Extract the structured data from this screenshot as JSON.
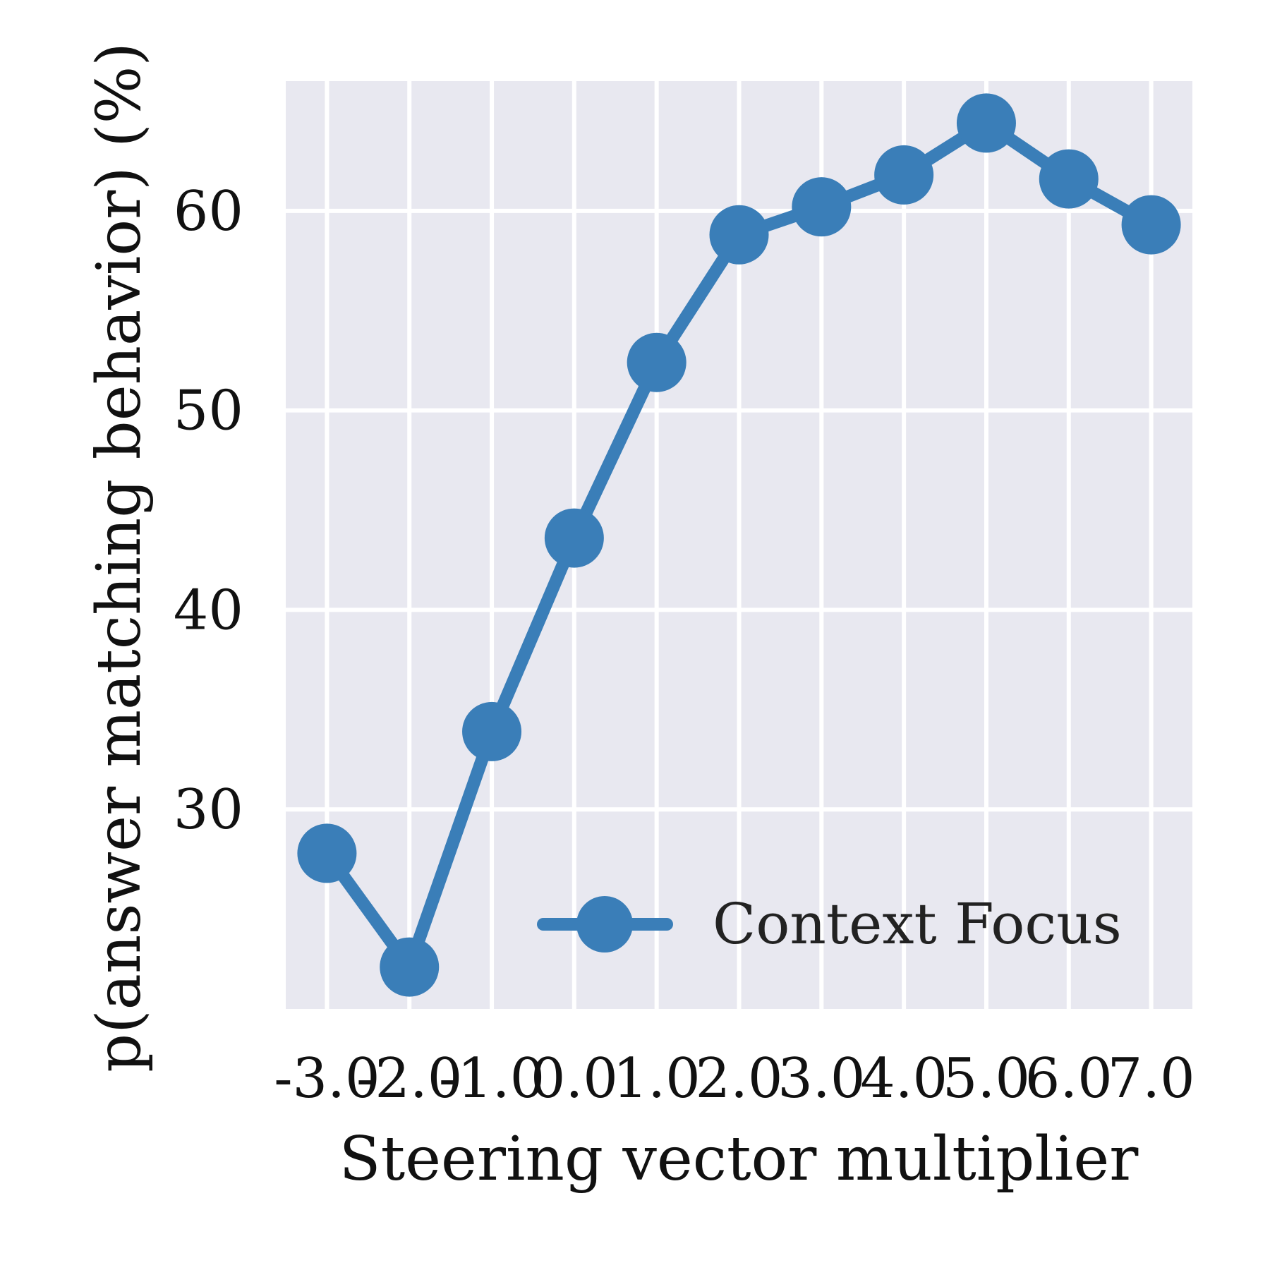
{
  "chart_data": {
    "type": "line",
    "title": "",
    "xlabel": "Steering vector multiplier",
    "ylabel": "p(answer matching behavior) (%)",
    "x": [
      -3.0,
      -2.0,
      -1.0,
      0.0,
      1.0,
      2.0,
      3.0,
      4.0,
      5.0,
      6.0,
      7.0
    ],
    "x_tick_labels": [
      "-3.0",
      "-2.0",
      "-1.0",
      "0.0",
      "1.0",
      "2.0",
      "3.0",
      "4.0",
      "5.0",
      "6.0",
      "7.0"
    ],
    "y_ticks": [
      30,
      40,
      50,
      60
    ],
    "y_tick_labels": [
      "30",
      "40",
      "50",
      "60"
    ],
    "xlim": [
      -3.5,
      7.5
    ],
    "ylim": [
      20.0,
      66.5
    ],
    "grid": true,
    "legend_position": "lower-right",
    "series": [
      {
        "name": "Context Focus",
        "color": "#3a7eb8",
        "values": [
          27.8,
          22.1,
          33.9,
          43.6,
          52.4,
          58.8,
          60.2,
          61.8,
          64.4,
          61.6,
          59.3
        ]
      }
    ]
  }
}
